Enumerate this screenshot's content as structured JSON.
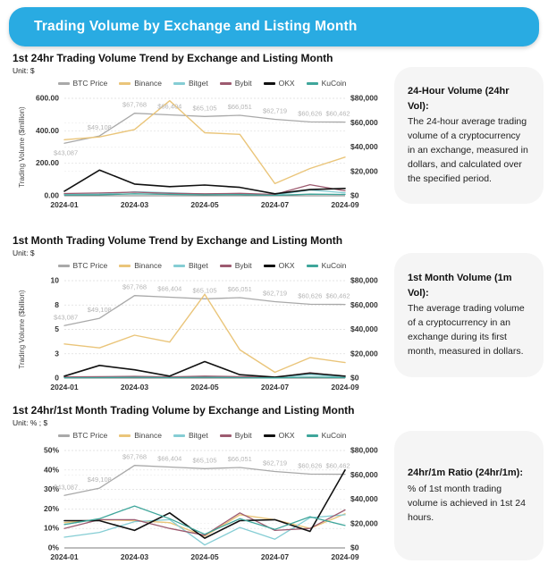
{
  "header": {
    "title": "Trading Volume by Exchange and Listing Month",
    "bg_color": "#29abe2"
  },
  "colors": {
    "card_bg": "#f5f5f5",
    "grid": "#dedede",
    "axis_line": "#7d7d7d",
    "tick_text": "#333333",
    "point_label": "#b5b5b5",
    "legend_text": "#444444"
  },
  "chart_data": [
    {
      "type": "line",
      "title": "1st 24hr Trading Volume Trend by Exchange and Listing Month",
      "unit": "Unit: $",
      "ylabel": "Trading Volume ($million)",
      "x_count": 9,
      "x_labels": [
        "2024-01",
        "2024-03",
        "2024-05",
        "2024-07",
        "2024-09"
      ],
      "x_label_indices": [
        0,
        2,
        4,
        6,
        8
      ],
      "left_range": [
        0,
        600
      ],
      "left_ticks": [
        {
          "v": 0,
          "label": "0.00"
        },
        {
          "v": 200,
          "label": "200.00"
        },
        {
          "v": 400,
          "label": "400.00"
        },
        {
          "v": 600,
          "label": "600.00"
        }
      ],
      "right_range": [
        0,
        80000
      ],
      "right_ticks": [
        {
          "v": 0,
          "label": "$0"
        },
        {
          "v": 20000,
          "label": "$20,000"
        },
        {
          "v": 40000,
          "label": "$40,000"
        },
        {
          "v": 60000,
          "label": "$60,000"
        },
        {
          "v": 80000,
          "label": "$80,000"
        }
      ],
      "first_label_below": true,
      "series": [
        {
          "name": "BTC Price",
          "color": "#a9a9a9",
          "axis": "right",
          "width": 1.3,
          "values": [
            43087,
            49108,
            67768,
            66404,
            65105,
            66051,
            62719,
            60626,
            60462
          ],
          "point_labels": [
            "$43,087",
            "$49,108",
            "$67,768",
            "$66,404",
            "$65,105",
            "$66,051",
            "$62,719",
            "$60,626",
            "$60,462"
          ]
        },
        {
          "name": "Binance",
          "color": "#eac57a",
          "axis": "left",
          "width": 1.4,
          "values": [
            345,
            362,
            408,
            585,
            388,
            378,
            75,
            168,
            238
          ]
        },
        {
          "name": "Bitget",
          "color": "#85cdd4",
          "axis": "left",
          "width": 1.3,
          "values": [
            8,
            10,
            25,
            18,
            10,
            12,
            5,
            35,
            18
          ]
        },
        {
          "name": "Bybit",
          "color": "#9d5b70",
          "axis": "left",
          "width": 1.3,
          "values": [
            14,
            17,
            22,
            15,
            12,
            15,
            8,
            68,
            30
          ]
        },
        {
          "name": "OKX",
          "color": "#111111",
          "axis": "left",
          "width": 1.6,
          "values": [
            28,
            158,
            72,
            56,
            66,
            52,
            12,
            38,
            45
          ]
        },
        {
          "name": "KuCoin",
          "color": "#3fa69b",
          "axis": "left",
          "width": 1.3,
          "values": [
            5,
            6,
            12,
            8,
            6,
            7,
            3,
            10,
            8
          ]
        }
      ]
    },
    {
      "type": "line",
      "title": "1st Month Trading Volume Trend by Exchange and Listing Month",
      "unit": "Unit: $",
      "ylabel": "Trading Volume ($billion)",
      "x_count": 9,
      "x_labels": [
        "2024-01",
        "2024-03",
        "2024-05",
        "2024-07",
        "2024-09"
      ],
      "x_label_indices": [
        0,
        2,
        4,
        6,
        8
      ],
      "left_range": [
        0,
        10
      ],
      "left_ticks": [
        {
          "v": 0,
          "label": "0"
        },
        {
          "v": 2.5,
          "label": "3"
        },
        {
          "v": 5,
          "label": "5"
        },
        {
          "v": 7.5,
          "label": "8"
        },
        {
          "v": 10,
          "label": "10"
        }
      ],
      "right_range": [
        0,
        80000
      ],
      "right_ticks": [
        {
          "v": 0,
          "label": "$0"
        },
        {
          "v": 20000,
          "label": "$20,000"
        },
        {
          "v": 40000,
          "label": "$40,000"
        },
        {
          "v": 60000,
          "label": "$60,000"
        },
        {
          "v": 80000,
          "label": "$80,000"
        }
      ],
      "first_label_below": false,
      "series": [
        {
          "name": "BTC Price",
          "color": "#a9a9a9",
          "axis": "right",
          "width": 1.3,
          "values": [
            43087,
            49108,
            67768,
            66404,
            65105,
            66051,
            62719,
            60626,
            60462
          ],
          "point_labels": [
            "$43,087",
            "$49,108",
            "$67,768",
            "$66,404",
            "$65,105",
            "$66,051",
            "$62,719",
            "$60,626",
            "$60,462"
          ]
        },
        {
          "name": "Binance",
          "color": "#eac57a",
          "axis": "left",
          "width": 1.4,
          "values": [
            3.5,
            3.1,
            4.4,
            3.7,
            8.6,
            2.9,
            0.6,
            2.1,
            1.6
          ]
        },
        {
          "name": "Bitget",
          "color": "#85cdd4",
          "axis": "left",
          "width": 1.3,
          "values": [
            0.08,
            0.1,
            0.15,
            0.1,
            0.15,
            0.1,
            0.05,
            0.35,
            0.1
          ]
        },
        {
          "name": "Bybit",
          "color": "#9d5b70",
          "axis": "left",
          "width": 1.3,
          "values": [
            0.12,
            0.15,
            0.18,
            0.12,
            0.2,
            0.15,
            0.06,
            0.55,
            0.18
          ]
        },
        {
          "name": "OKX",
          "color": "#111111",
          "axis": "left",
          "width": 1.6,
          "values": [
            0.2,
            1.3,
            0.85,
            0.2,
            1.7,
            0.35,
            0.1,
            0.5,
            0.2
          ]
        },
        {
          "name": "KuCoin",
          "color": "#3fa69b",
          "axis": "left",
          "width": 1.3,
          "values": [
            0.04,
            0.05,
            0.08,
            0.05,
            0.08,
            0.05,
            0.02,
            0.1,
            0.05
          ]
        }
      ]
    },
    {
      "type": "line",
      "title": "1st 24hr/1st Month Trading Volume by Exchange and Listing Month",
      "unit": "Unit: % ; $",
      "ylabel": "",
      "x_count": 9,
      "x_labels": [
        "2024-01",
        "2024-03",
        "2024-05",
        "2024-07",
        "2024-09"
      ],
      "x_label_indices": [
        0,
        2,
        4,
        6,
        8
      ],
      "left_range": [
        0,
        50
      ],
      "left_ticks": [
        {
          "v": 0,
          "label": "0%"
        },
        {
          "v": 10,
          "label": "10%"
        },
        {
          "v": 20,
          "label": "20%"
        },
        {
          "v": 30,
          "label": "30%"
        },
        {
          "v": 40,
          "label": "40%"
        },
        {
          "v": 50,
          "label": "50%"
        }
      ],
      "right_range": [
        0,
        80000
      ],
      "right_ticks": [
        {
          "v": 0,
          "label": "$0"
        },
        {
          "v": 20000,
          "label": "$20,000"
        },
        {
          "v": 40000,
          "label": "$40,000"
        },
        {
          "v": 60000,
          "label": "$60,000"
        },
        {
          "v": 80000,
          "label": "$80,000"
        }
      ],
      "first_label_below": false,
      "series": [
        {
          "name": "BTC Price",
          "color": "#a9a9a9",
          "axis": "right",
          "width": 1.3,
          "values": [
            43087,
            49108,
            67768,
            66404,
            65105,
            66051,
            62719,
            60626,
            60462
          ],
          "point_labels": [
            "$43,087",
            "$49,108",
            "$67,768",
            "$66,404",
            "$65,105",
            "$66,051",
            "$62,719",
            "$60,626",
            "$60,462"
          ]
        },
        {
          "name": "Binance",
          "color": "#eac57a",
          "axis": "left",
          "width": 1.4,
          "values": [
            13,
            14.5,
            14,
            13,
            6,
            17,
            14.5,
            10,
            17.5
          ]
        },
        {
          "name": "Bitget",
          "color": "#85cdd4",
          "axis": "left",
          "width": 1.3,
          "values": [
            5.5,
            8,
            13.5,
            14.5,
            1.5,
            10.5,
            4.5,
            15.5,
            17
          ]
        },
        {
          "name": "Bybit",
          "color": "#9d5b70",
          "axis": "left",
          "width": 1.3,
          "values": [
            10,
            14.5,
            14.5,
            10,
            6.5,
            18,
            9,
            10,
            19.5
          ]
        },
        {
          "name": "OKX",
          "color": "#111111",
          "axis": "left",
          "width": 1.6,
          "values": [
            14,
            14,
            9,
            18,
            5,
            14,
            14.5,
            8.5,
            40
          ]
        },
        {
          "name": "KuCoin",
          "color": "#3fa69b",
          "axis": "left",
          "width": 1.3,
          "values": [
            12,
            15,
            21.5,
            15,
            7,
            15,
            9.5,
            16,
            11.5
          ]
        }
      ]
    }
  ],
  "cards": [
    {
      "title": "24-Hour Volume (24hr Vol):",
      "body": "The 24-hour average trading volume of a cryptocurrency in an exchange, measured in dollars, and calculated over the specified period."
    },
    {
      "title": "1st Month Volume (1m Vol):",
      "body": "The average trading volume of a cryptocurrency in an exchange during its first month, measured in dollars."
    },
    {
      "title": "24hr/1m Ratio (24hr/1m):",
      "body": "% of 1st month trading volume is achieved in 1st 24 hours."
    }
  ]
}
